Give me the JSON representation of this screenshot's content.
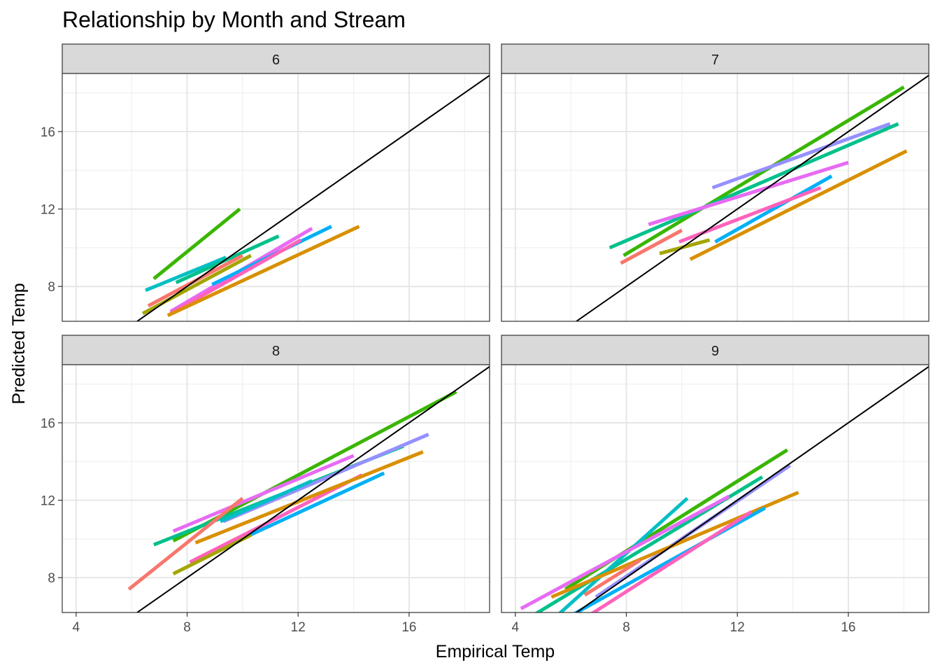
{
  "chart_data": {
    "type": "line",
    "title": "Relationship by Month and Stream",
    "xlabel": "Empirical Temp",
    "ylabel": "Predicted Temp",
    "xlim": [
      3.5,
      18.9
    ],
    "ylim": [
      6.2,
      19.0
    ],
    "xticks": [
      4,
      8,
      12,
      16
    ],
    "yticks": [
      8,
      12,
      16
    ],
    "grid": true,
    "reference_line": "y = x",
    "legend": "none",
    "panels": [
      {
        "label": "6",
        "series": [
          {
            "color": "#39B600",
            "x": [
              6.8,
              9.9
            ],
            "y": [
              8.4,
              12.0
            ]
          },
          {
            "color": "#00BFC4",
            "x": [
              6.5,
              9.4
            ],
            "y": [
              7.8,
              9.5
            ]
          },
          {
            "color": "#00C08B",
            "x": [
              7.6,
              11.3
            ],
            "y": [
              8.2,
              10.6
            ]
          },
          {
            "color": "#E76BF3",
            "x": [
              7.4,
              12.5
            ],
            "y": [
              6.7,
              11.0
            ]
          },
          {
            "color": "#00B0F6",
            "x": [
              8.9,
              13.2
            ],
            "y": [
              8.1,
              11.1
            ]
          },
          {
            "color": "#FF62BC",
            "x": [
              7.4,
              12.1
            ],
            "y": [
              6.6,
              10.4
            ]
          },
          {
            "color": "#D89000",
            "x": [
              7.3,
              14.2
            ],
            "y": [
              6.5,
              11.1
            ]
          },
          {
            "color": "#A3A500",
            "x": [
              6.4,
              10.3
            ],
            "y": [
              6.6,
              9.6
            ]
          },
          {
            "color": "#F8766D",
            "x": [
              6.6,
              10.0
            ],
            "y": [
              7.0,
              9.6
            ]
          }
        ]
      },
      {
        "label": "7",
        "series": [
          {
            "color": "#39B600",
            "x": [
              7.9,
              18.0
            ],
            "y": [
              9.6,
              18.3
            ]
          },
          {
            "color": "#00C08B",
            "x": [
              7.4,
              17.8
            ],
            "y": [
              10.0,
              16.4
            ]
          },
          {
            "color": "#9590FF",
            "x": [
              11.1,
              17.5
            ],
            "y": [
              13.1,
              16.4
            ]
          },
          {
            "color": "#E76BF3",
            "x": [
              8.8,
              16.0
            ],
            "y": [
              11.2,
              14.4
            ]
          },
          {
            "color": "#00B0F6",
            "x": [
              11.2,
              15.4
            ],
            "y": [
              10.3,
              13.7
            ]
          },
          {
            "color": "#FF62BC",
            "x": [
              9.9,
              15.0
            ],
            "y": [
              10.3,
              13.1
            ]
          },
          {
            "color": "#D89000",
            "x": [
              10.3,
              18.1
            ],
            "y": [
              9.4,
              15.0
            ]
          },
          {
            "color": "#A3A500",
            "x": [
              9.2,
              11.0
            ],
            "y": [
              9.7,
              10.4
            ]
          },
          {
            "color": "#F8766D",
            "x": [
              7.8,
              10.0
            ],
            "y": [
              9.2,
              10.9
            ]
          }
        ]
      },
      {
        "label": "8",
        "series": [
          {
            "color": "#39B600",
            "x": [
              7.5,
              17.7
            ],
            "y": [
              9.9,
              17.6
            ]
          },
          {
            "color": "#00C08B",
            "x": [
              6.8,
              15.8
            ],
            "y": [
              9.7,
              14.8
            ]
          },
          {
            "color": "#9590FF",
            "x": [
              9.3,
              16.7
            ],
            "y": [
              10.9,
              15.4
            ]
          },
          {
            "color": "#E76BF3",
            "x": [
              7.5,
              14.0
            ],
            "y": [
              10.4,
              14.3
            ]
          },
          {
            "color": "#00B0F6",
            "x": [
              8.3,
              15.1
            ],
            "y": [
              8.9,
              13.4
            ]
          },
          {
            "color": "#FF62BC",
            "x": [
              8.1,
              14.3
            ],
            "y": [
              8.8,
              13.3
            ]
          },
          {
            "color": "#D89000",
            "x": [
              8.3,
              16.5
            ],
            "y": [
              9.8,
              14.5
            ]
          },
          {
            "color": "#A3A500",
            "x": [
              7.5,
              10.3
            ],
            "y": [
              8.2,
              10.2
            ]
          },
          {
            "color": "#F8766D",
            "x": [
              5.9,
              10.0
            ],
            "y": [
              7.4,
              12.1
            ]
          },
          {
            "color": "#00BFC4",
            "x": [
              9.2,
              12.5
            ],
            "y": [
              10.9,
              13.0
            ]
          }
        ]
      },
      {
        "label": "9",
        "series": [
          {
            "color": "#39B600",
            "x": [
              5.8,
              13.8
            ],
            "y": [
              7.4,
              14.6
            ]
          },
          {
            "color": "#00C08B",
            "x": [
              4.0,
              12.9
            ],
            "y": [
              5.5,
              13.2
            ]
          },
          {
            "color": "#00BFC4",
            "x": [
              5.4,
              10.2
            ],
            "y": [
              5.9,
              12.1
            ]
          },
          {
            "color": "#E76BF3",
            "x": [
              4.2,
              11.7
            ],
            "y": [
              6.4,
              12.2
            ]
          },
          {
            "color": "#9590FF",
            "x": [
              6.9,
              13.9
            ],
            "y": [
              7.0,
              13.8
            ]
          },
          {
            "color": "#D89000",
            "x": [
              5.3,
              14.2
            ],
            "y": [
              7.0,
              12.4
            ]
          },
          {
            "color": "#00B0F6",
            "x": [
              5.2,
              13.0
            ],
            "y": [
              5.4,
              11.6
            ]
          },
          {
            "color": "#FF62BC",
            "x": [
              5.4,
              12.5
            ],
            "y": [
              4.9,
              11.4
            ]
          },
          {
            "color": "#F8766D",
            "x": [
              6.5,
              8.5
            ],
            "y": [
              7.1,
              8.9
            ]
          }
        ]
      }
    ]
  }
}
